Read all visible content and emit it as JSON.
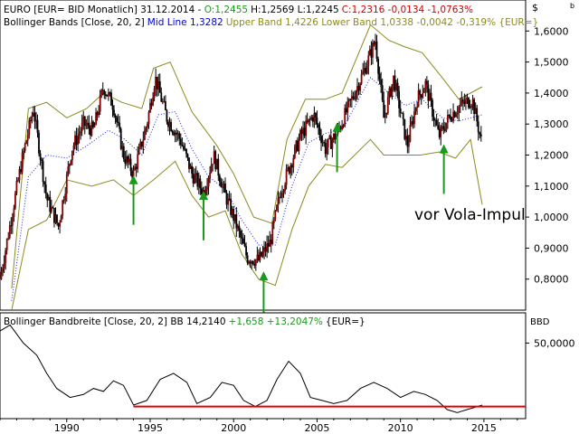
{
  "corner_symbols": {
    "top": "$",
    "bottom": "b"
  },
  "main_header": {
    "symbol_line": "EURO [EUR= BID Monatlich] 31.12.2014 -",
    "open": "O:1,2455",
    "high_low": "H:1,2569 L:1,2245",
    "close": "C:1,2316 -0,0134 -1,0763%"
  },
  "bb_header": {
    "title": "Bollinger Bands [Close, 20, 2]",
    "mid": "Mid Line 1,3282",
    "upper_lower": "Upper Band 1,4226 Lower Band 1,0338 -0,0042 -0,319% {EUR=}"
  },
  "annotation": "vor Vola-Impul",
  "bw_header": {
    "title": "Bollinger Bandbreite [Close, 20, 2] BB 14,2140",
    "change": "+1,658 +13,2047%",
    "suffix": "{EUR=}"
  },
  "bw_axis_label": "BBD",
  "colors": {
    "candle": "#8b0000",
    "wick": "#000000",
    "band": "#8b8b1e",
    "mid": "#1c1cff",
    "arrow": "#1a9a1a",
    "hline": "#e00000",
    "close_text": "#cc0000",
    "open_text": "#1a9a1a",
    "mid_text": "#0000cc",
    "band_text": "#8b8b1e"
  },
  "chart_data": [
    {
      "type": "candlestick",
      "title": "EURO [EUR= BID Monatlich]",
      "x_ticks": [
        "1990",
        "1995",
        "2000",
        "2005",
        "2010",
        "2015"
      ],
      "y_ticks": [
        "1,6000",
        "1,5000",
        "1,4000",
        "1,3000",
        "1,2000",
        "1,1000",
        "1,0000",
        "0,9000",
        "0,8000"
      ],
      "ylim": [
        0.7,
        1.7
      ],
      "xlim": [
        1986,
        2017.5
      ],
      "price_path": [
        [
          1986.0,
          0.8
        ],
        [
          1987.3,
          1.18
        ],
        [
          1988.0,
          1.35
        ],
        [
          1988.8,
          1.06
        ],
        [
          1989.5,
          0.97
        ],
        [
          1990.3,
          1.22
        ],
        [
          1991.0,
          1.3
        ],
        [
          1991.6,
          1.28
        ],
        [
          1992.2,
          1.42
        ],
        [
          1992.8,
          1.36
        ],
        [
          1993.4,
          1.2
        ],
        [
          1994.0,
          1.14
        ],
        [
          1994.8,
          1.3
        ],
        [
          1995.3,
          1.45
        ],
        [
          1996.0,
          1.32
        ],
        [
          1996.8,
          1.25
        ],
        [
          1997.5,
          1.14
        ],
        [
          1998.2,
          1.08
        ],
        [
          1998.8,
          1.2
        ],
        [
          1999.5,
          1.07
        ],
        [
          2000.0,
          1.0
        ],
        [
          2000.8,
          0.87
        ],
        [
          2001.5,
          0.86
        ],
        [
          2002.2,
          0.92
        ],
        [
          2002.8,
          1.08
        ],
        [
          2003.4,
          1.17
        ],
        [
          2004.0,
          1.26
        ],
        [
          2004.8,
          1.33
        ],
        [
          2005.5,
          1.22
        ],
        [
          2006.2,
          1.27
        ],
        [
          2007.0,
          1.37
        ],
        [
          2007.8,
          1.47
        ],
        [
          2008.5,
          1.57
        ],
        [
          2009.0,
          1.32
        ],
        [
          2009.6,
          1.45
        ],
        [
          2010.4,
          1.23
        ],
        [
          2011.0,
          1.38
        ],
        [
          2011.5,
          1.43
        ],
        [
          2012.3,
          1.26
        ],
        [
          2013.0,
          1.33
        ],
        [
          2013.6,
          1.36
        ],
        [
          2014.3,
          1.38
        ],
        [
          2014.9,
          1.23
        ]
      ],
      "upper_band": [
        [
          1986.7,
          0.77
        ],
        [
          1987.7,
          1.35
        ],
        [
          1988.8,
          1.37
        ],
        [
          1990.0,
          1.32
        ],
        [
          1991.2,
          1.35
        ],
        [
          1992.2,
          1.4
        ],
        [
          1993.3,
          1.37
        ],
        [
          1994.5,
          1.35
        ],
        [
          1995.2,
          1.48
        ],
        [
          1996.2,
          1.5
        ],
        [
          1997.5,
          1.34
        ],
        [
          1999.0,
          1.23
        ],
        [
          2000.0,
          1.14
        ],
        [
          2001.2,
          1.0
        ],
        [
          2002.3,
          0.98
        ],
        [
          2003.2,
          1.25
        ],
        [
          2004.3,
          1.38
        ],
        [
          2005.5,
          1.38
        ],
        [
          2006.5,
          1.4
        ],
        [
          2008.2,
          1.62
        ],
        [
          2009.3,
          1.57
        ],
        [
          2010.2,
          1.55
        ],
        [
          2011.3,
          1.53
        ],
        [
          2012.5,
          1.45
        ],
        [
          2013.5,
          1.38
        ],
        [
          2014.9,
          1.42
        ]
      ],
      "lower_band": [
        [
          1986.7,
          0.7
        ],
        [
          1987.7,
          0.96
        ],
        [
          1988.8,
          0.99
        ],
        [
          1990.0,
          1.12
        ],
        [
          1991.5,
          1.1
        ],
        [
          1992.8,
          1.12
        ],
        [
          1994.0,
          1.07
        ],
        [
          1995.2,
          1.12
        ],
        [
          1996.5,
          1.18
        ],
        [
          1997.5,
          1.07
        ],
        [
          1998.5,
          1.0
        ],
        [
          1999.5,
          1.02
        ],
        [
          2000.5,
          0.88
        ],
        [
          2001.5,
          0.8
        ],
        [
          2002.5,
          0.78
        ],
        [
          2003.5,
          0.96
        ],
        [
          2004.5,
          1.1
        ],
        [
          2005.5,
          1.17
        ],
        [
          2006.5,
          1.16
        ],
        [
          2008.2,
          1.25
        ],
        [
          2009.0,
          1.2
        ],
        [
          2010.0,
          1.2
        ],
        [
          2011.2,
          1.2
        ],
        [
          2012.3,
          1.21
        ],
        [
          2013.3,
          1.19
        ],
        [
          2014.2,
          1.25
        ],
        [
          2014.9,
          1.04
        ]
      ],
      "mid_line": [
        [
          1986.7,
          0.73
        ],
        [
          1987.7,
          1.13
        ],
        [
          1988.8,
          1.2
        ],
        [
          1990.0,
          1.19
        ],
        [
          1991.2,
          1.23
        ],
        [
          1992.5,
          1.28
        ],
        [
          1993.5,
          1.25
        ],
        [
          1994.5,
          1.2
        ],
        [
          1995.5,
          1.33
        ],
        [
          1996.5,
          1.34
        ],
        [
          1997.5,
          1.22
        ],
        [
          1998.5,
          1.13
        ],
        [
          1999.5,
          1.09
        ],
        [
          2000.5,
          0.99
        ],
        [
          2001.5,
          0.91
        ],
        [
          2002.5,
          0.91
        ],
        [
          2003.5,
          1.1
        ],
        [
          2004.5,
          1.24
        ],
        [
          2005.5,
          1.27
        ],
        [
          2006.5,
          1.28
        ],
        [
          2008.2,
          1.45
        ],
        [
          2009.3,
          1.4
        ],
        [
          2010.3,
          1.36
        ],
        [
          2011.3,
          1.38
        ],
        [
          2012.5,
          1.32
        ],
        [
          2013.5,
          1.31
        ],
        [
          2014.9,
          1.33
        ]
      ],
      "arrows": [
        {
          "x": 1994.0,
          "y_top": 1.135,
          "y_bottom": 0.975
        },
        {
          "x": 1998.2,
          "y_top": 1.085,
          "y_bottom": 0.925
        },
        {
          "x": 2001.8,
          "y_top": 0.825,
          "y_bottom": 0.665
        },
        {
          "x": 2006.2,
          "y_top": 1.305,
          "y_bottom": 1.145
        },
        {
          "x": 2012.6,
          "y_top": 1.235,
          "y_bottom": 1.075
        }
      ]
    },
    {
      "type": "line",
      "title": "Bollinger Bandbreite [Close, 20, 2]",
      "y_ticks": [
        "50,0000"
      ],
      "ylim": [
        0,
        70
      ],
      "threshold": 8,
      "series": [
        [
          1986.0,
          58
        ],
        [
          1986.6,
          62
        ],
        [
          1987.4,
          50
        ],
        [
          1988.2,
          42
        ],
        [
          1988.8,
          30
        ],
        [
          1989.4,
          20
        ],
        [
          1990.2,
          14
        ],
        [
          1991.0,
          16
        ],
        [
          1991.6,
          20
        ],
        [
          1992.2,
          18
        ],
        [
          1992.8,
          25
        ],
        [
          1993.4,
          22
        ],
        [
          1994.0,
          9
        ],
        [
          1994.8,
          12
        ],
        [
          1995.6,
          26
        ],
        [
          1996.4,
          30
        ],
        [
          1997.2,
          24
        ],
        [
          1997.8,
          10
        ],
        [
          1998.6,
          14
        ],
        [
          1999.3,
          24
        ],
        [
          2000.0,
          22
        ],
        [
          2000.6,
          12
        ],
        [
          2001.3,
          8
        ],
        [
          2002.0,
          12
        ],
        [
          2002.6,
          26
        ],
        [
          2003.3,
          38
        ],
        [
          2004.0,
          30
        ],
        [
          2004.6,
          14
        ],
        [
          2005.3,
          12
        ],
        [
          2006.0,
          10
        ],
        [
          2006.8,
          12
        ],
        [
          2007.6,
          20
        ],
        [
          2008.4,
          24
        ],
        [
          2009.2,
          20
        ],
        [
          2010.0,
          14
        ],
        [
          2010.8,
          18
        ],
        [
          2011.5,
          16
        ],
        [
          2012.2,
          12
        ],
        [
          2012.8,
          6
        ],
        [
          2013.4,
          4
        ],
        [
          2014.0,
          6
        ],
        [
          2014.9,
          9
        ]
      ]
    }
  ]
}
